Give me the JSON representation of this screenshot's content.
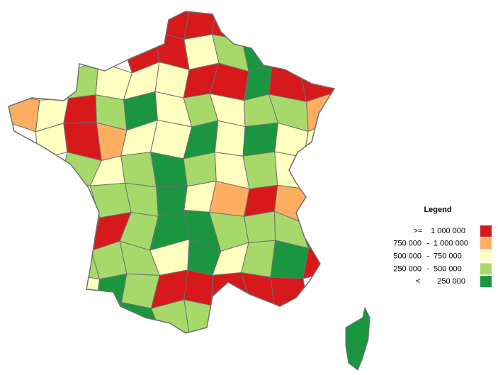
{
  "legend": {
    "title": "Legend",
    "items": [
      {
        "from": ">=",
        "to": "1 000 000",
        "color": "#d7191c"
      },
      {
        "from": "750 000",
        "sep": "-",
        "to": "1 000 000",
        "color": "#fdae61"
      },
      {
        "from": "500 000",
        "sep": "-",
        "to": "750 000",
        "color": "#ffffbf"
      },
      {
        "from": "250 000",
        "sep": "-",
        "to": "500 000",
        "color": "#a6d96a"
      },
      {
        "from": "<",
        "to": "250 000",
        "color": "#1a9641"
      }
    ]
  }
}
